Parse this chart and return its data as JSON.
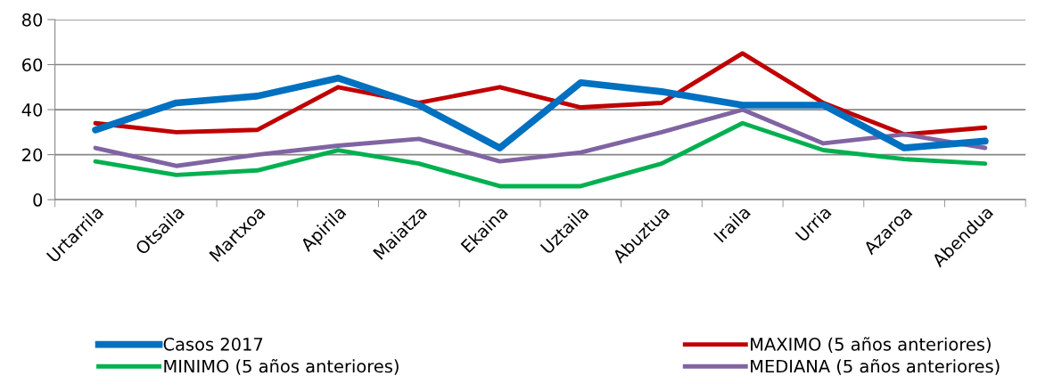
{
  "chart_data": {
    "type": "line",
    "categories": [
      "Urtarrila",
      "Otsaila",
      "Martxoa",
      "Apirila",
      "Maiatza",
      "Ekaina",
      "Uztaila",
      "Abuztua",
      "Iraila",
      "Urria",
      "Azaroa",
      "Abendua"
    ],
    "series": [
      {
        "name": "Casos 2017",
        "color": "#0070c0",
        "values": [
          31,
          43,
          46,
          54,
          42,
          23,
          52,
          48,
          42,
          42,
          23,
          26
        ]
      },
      {
        "name": "MAXIMO (5 años anteriores)",
        "color": "#c00000",
        "values": [
          34,
          30,
          31,
          50,
          43,
          50,
          41,
          43,
          65,
          43,
          29,
          32
        ]
      },
      {
        "name": "MINIMO (5 años anteriores)",
        "color": "#00b050",
        "values": [
          17,
          11,
          13,
          22,
          16,
          6,
          6,
          16,
          34,
          22,
          18,
          16
        ]
      },
      {
        "name": "MEDIANA (5 años anteriores)",
        "color": "#8064a2",
        "values": [
          23,
          15,
          20,
          24,
          27,
          17,
          21,
          30,
          40,
          25,
          29,
          23
        ]
      }
    ],
    "ylim": [
      0,
      80
    ],
    "yticks": [
      0,
      20,
      40,
      60,
      80
    ],
    "grid": "y",
    "legend": "bottom",
    "marker": "none",
    "line_style": "solid"
  }
}
